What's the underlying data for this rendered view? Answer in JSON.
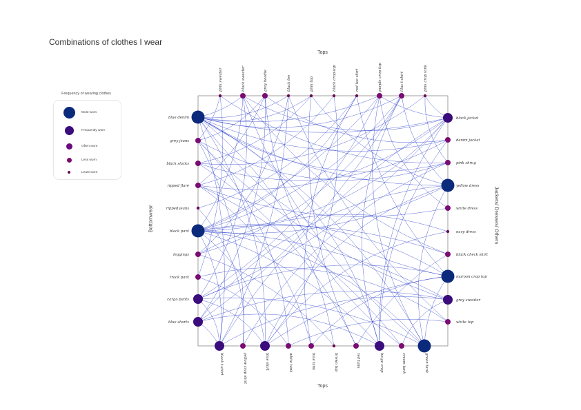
{
  "title": "Combinations of clothes I wear",
  "axis_titles": {
    "top": "Tops",
    "bottom": "Tops",
    "left": "Bottomwear",
    "right": "Jackets/ Dresses/ Others"
  },
  "legend": {
    "title": "Frequency of wearing clothes",
    "items": [
      {
        "label": "Most worn",
        "color": "#0c2a7c"
      },
      {
        "label": "Frequently worn",
        "color": "#3a0c7c"
      },
      {
        "label": "Often worn",
        "color": "#6b0b80"
      },
      {
        "label": "Less worn",
        "color": "#7a0c72"
      },
      {
        "label": "Least worn",
        "color": "#6a0a55"
      }
    ]
  },
  "level_colors": [
    "#0c2a7c",
    "#3a0c7c",
    "#6b0b80",
    "#7a0c72",
    "#6a0a55"
  ],
  "edge_color": "#2437c9",
  "nodes": {
    "top": [
      {
        "label": "pink sweater",
        "level": 4
      },
      {
        "label": "black sweater",
        "level": 3
      },
      {
        "label": "grey hoodie",
        "level": 3
      },
      {
        "label": "black tee",
        "level": 4
      },
      {
        "label": "pink top",
        "level": 4
      },
      {
        "label": "black crop-top",
        "level": 4
      },
      {
        "label": "red tee shirt",
        "level": 4
      },
      {
        "label": "purple crop top",
        "level": 3
      },
      {
        "label": "lilac t-shirt",
        "level": 3
      },
      {
        "label": "pink crop tank",
        "level": 4
      }
    ],
    "bottom": [
      {
        "label": "black t-shirt",
        "level": 1
      },
      {
        "label": "yellow crop shirt",
        "level": 3
      },
      {
        "label": "blue shirt",
        "level": 1
      },
      {
        "label": "white tank",
        "level": 3
      },
      {
        "label": "blue tank",
        "level": 3
      },
      {
        "label": "brown top",
        "level": 4
      },
      {
        "label": "red tank",
        "level": 3
      },
      {
        "label": "beige crop",
        "level": 1
      },
      {
        "label": "cream tank",
        "level": 3
      },
      {
        "label": "green tank",
        "level": 0
      }
    ],
    "left": [
      {
        "label": "blue denim",
        "level": 0
      },
      {
        "label": "grey jeans",
        "level": 3
      },
      {
        "label": "black slacks",
        "level": 3
      },
      {
        "label": "ripped flare",
        "level": 3
      },
      {
        "label": "ripped jeans",
        "level": 4
      },
      {
        "label": "black pant",
        "level": 0
      },
      {
        "label": "leggings",
        "level": 3
      },
      {
        "label": "track pant",
        "level": 3
      },
      {
        "label": "cargo pants",
        "level": 1
      },
      {
        "label": "blue shorts",
        "level": 1
      }
    ],
    "right": [
      {
        "label": "black jacket",
        "level": 1
      },
      {
        "label": "denim jacket",
        "level": 3
      },
      {
        "label": "pink shrug",
        "level": 3
      },
      {
        "label": "yellow dress",
        "level": 0
      },
      {
        "label": "white dress",
        "level": 3
      },
      {
        "label": "navy dress",
        "level": 4
      },
      {
        "label": "black check shirt",
        "level": 3
      },
      {
        "label": "maroon crop top",
        "level": 0
      },
      {
        "label": "grey sweater",
        "level": 1
      },
      {
        "label": "white top",
        "level": 3
      }
    ]
  },
  "edges": [
    [
      "L0",
      "T1"
    ],
    [
      "L0",
      "T3"
    ],
    [
      "L0",
      "T4"
    ],
    [
      "L0",
      "T7"
    ],
    [
      "L0",
      "T8"
    ],
    [
      "L0",
      "R0"
    ],
    [
      "L0",
      "R1"
    ],
    [
      "L0",
      "R2"
    ],
    [
      "L0",
      "R3"
    ],
    [
      "L0",
      "R7"
    ],
    [
      "L0",
      "B0"
    ],
    [
      "L0",
      "B2"
    ],
    [
      "L0",
      "B7"
    ],
    [
      "L0",
      "B9"
    ],
    [
      "L0",
      "B5"
    ],
    [
      "L1",
      "T0"
    ],
    [
      "L1",
      "T2"
    ],
    [
      "L1",
      "R2"
    ],
    [
      "L1",
      "B1"
    ],
    [
      "L1",
      "B3"
    ],
    [
      "L1",
      "R8"
    ],
    [
      "L2",
      "T4"
    ],
    [
      "L2",
      "R1"
    ],
    [
      "L2",
      "B6"
    ],
    [
      "L2",
      "T9"
    ],
    [
      "L3",
      "T2"
    ],
    [
      "L3",
      "T5"
    ],
    [
      "L3",
      "R0"
    ],
    [
      "L3",
      "R4"
    ],
    [
      "L3",
      "B4"
    ],
    [
      "L3",
      "B8"
    ],
    [
      "L4",
      "T6"
    ],
    [
      "L4",
      "B1"
    ],
    [
      "L5",
      "T1"
    ],
    [
      "L5",
      "T6"
    ],
    [
      "L5",
      "T7"
    ],
    [
      "L5",
      "T8"
    ],
    [
      "L5",
      "R0"
    ],
    [
      "L5",
      "R3"
    ],
    [
      "L5",
      "R7"
    ],
    [
      "L5",
      "R8"
    ],
    [
      "L5",
      "B0"
    ],
    [
      "L5",
      "B2"
    ],
    [
      "L5",
      "B7"
    ],
    [
      "L5",
      "B9"
    ],
    [
      "L5",
      "R6"
    ],
    [
      "L6",
      "T3"
    ],
    [
      "L6",
      "R5"
    ],
    [
      "L6",
      "B5"
    ],
    [
      "L6",
      "T8"
    ],
    [
      "L7",
      "T0"
    ],
    [
      "L7",
      "B3"
    ],
    [
      "L7",
      "R9"
    ],
    [
      "L8",
      "T7"
    ],
    [
      "L8",
      "T1"
    ],
    [
      "L8",
      "R0"
    ],
    [
      "L8",
      "R7"
    ],
    [
      "L8",
      "B0"
    ],
    [
      "L8",
      "B9"
    ],
    [
      "L8",
      "B2"
    ],
    [
      "L9",
      "T8"
    ],
    [
      "L9",
      "T2"
    ],
    [
      "L9",
      "R3"
    ],
    [
      "L9",
      "R8"
    ],
    [
      "L9",
      "B7"
    ],
    [
      "L9",
      "B0"
    ],
    [
      "T0",
      "R2"
    ],
    [
      "T1",
      "R0"
    ],
    [
      "T1",
      "B9"
    ],
    [
      "T2",
      "R1"
    ],
    [
      "T3",
      "B0"
    ],
    [
      "T4",
      "R3"
    ],
    [
      "T5",
      "B2"
    ],
    [
      "T6",
      "R7"
    ],
    [
      "T7",
      "B9"
    ],
    [
      "T7",
      "R0"
    ],
    [
      "T8",
      "R3"
    ],
    [
      "T8",
      "B7"
    ],
    [
      "T9",
      "R0"
    ],
    [
      "T9",
      "R2"
    ],
    [
      "B0",
      "R0"
    ],
    [
      "B1",
      "R2"
    ],
    [
      "B2",
      "R3"
    ],
    [
      "B3",
      "R9"
    ],
    [
      "B4",
      "R7"
    ],
    [
      "B6",
      "R6"
    ],
    [
      "B7",
      "R0"
    ],
    [
      "B8",
      "R8"
    ],
    [
      "B9",
      "R7"
    ],
    [
      "B9",
      "R3"
    ],
    [
      "B2",
      "R7"
    ],
    [
      "B0",
      "R8"
    ],
    [
      "T2",
      "B8"
    ],
    [
      "T4",
      "B6"
    ],
    [
      "T6",
      "B4"
    ],
    [
      "T3",
      "R9"
    ],
    [
      "R1",
      "B7"
    ],
    [
      "R4",
      "T7"
    ],
    [
      "R6",
      "T1"
    ],
    [
      "R5",
      "B2"
    ]
  ]
}
